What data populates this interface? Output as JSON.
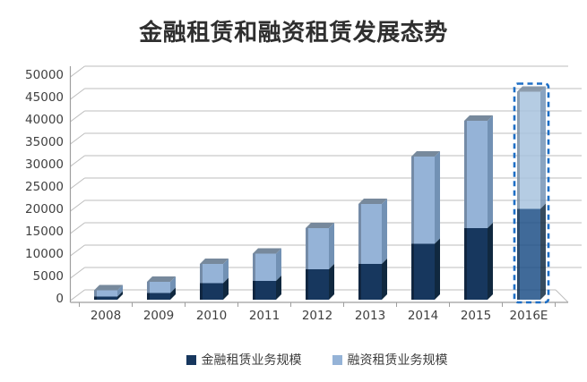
{
  "title": "金融租赁和融资租赁发展态势",
  "legend": [
    {
      "label": "金融租赁业务规模",
      "color": "#17375E"
    },
    {
      "label": "融资租赁业务规模",
      "color": "#95B3D7"
    }
  ],
  "colors": {
    "dark_series": "#17375E",
    "light_series": "#95B3D7",
    "dark_side": "#10283F",
    "light_side": "#7291B4",
    "top_cap": "#77899C",
    "gridline": "#BDBDBD",
    "axis": "#9E9E9E",
    "tick_label": "#404040",
    "highlight_outline": "#1F6FC5",
    "highlight_dark": "#1C4D85",
    "highlight_light": "#A7C2DE"
  },
  "chart_data": {
    "type": "bar",
    "stacked": true,
    "style": "3d-column",
    "title": "金融租赁和融资租赁发展态势",
    "categories": [
      "2008",
      "2009",
      "2010",
      "2011",
      "2012",
      "2013",
      "2014",
      "2015",
      "2016E"
    ],
    "series": [
      {
        "name": "金融租赁业务规模",
        "color": "#17375E",
        "values": [
          700,
          1500,
          3700,
          4200,
          6800,
          8000,
          12500,
          16000,
          20300
        ]
      },
      {
        "name": "融资租赁业务规模",
        "color": "#95B3D7",
        "values": [
          1400,
          2500,
          4300,
          6100,
          9200,
          13400,
          19500,
          24000,
          26200
        ]
      }
    ],
    "totals": [
      2100,
      4000,
      8000,
      10300,
      16000,
      21400,
      32000,
      40000,
      46500
    ],
    "xlabel": "",
    "ylabel": "",
    "ylim": [
      0,
      50000
    ],
    "ytick_interval": 5000,
    "yticks": [
      "0",
      "5000",
      "10000",
      "15000",
      "20000",
      "25000",
      "30000",
      "35000",
      "40000",
      "45000",
      "50000"
    ],
    "grid": true,
    "legend_position": "bottom",
    "highlight_category": "2016E",
    "highlight_style": "blue-dashed-outline-translucent"
  }
}
